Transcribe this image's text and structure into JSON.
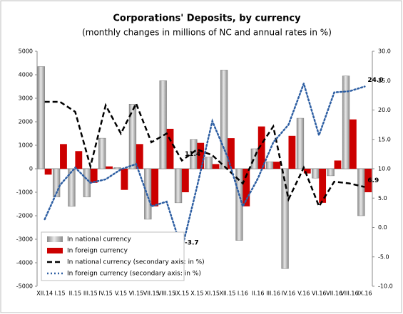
{
  "chart_data": {
    "type": "bar-line",
    "title": "Corporations' Deposits, by currency",
    "subtitle": "(monthly changes in millions of NC and annual rates in %)",
    "categories": [
      "XII.14",
      "I.15",
      "II.15",
      "III.15",
      "IV.15",
      "V.15",
      "VI.15",
      "VII.15",
      "VIII.15",
      "IX.15",
      "X.15",
      "XI.15",
      "XII.15",
      "I.16",
      "II.16",
      "III.16",
      "IV.16",
      "V.16",
      "VI.16",
      "VII.16",
      "VIII.16",
      "IX.16"
    ],
    "series": [
      {
        "name": "In national currency",
        "type": "bar",
        "color": "#a6a6a6",
        "values": [
          4350,
          -1200,
          -1600,
          -1200,
          1300,
          50,
          2750,
          -2150,
          3750,
          -1450,
          1250,
          500,
          4200,
          -3050,
          850,
          300,
          -4250,
          2150,
          -400,
          -300,
          3950,
          -2000
        ]
      },
      {
        "name": "In foreign currency",
        "type": "bar",
        "color": "#cc0000",
        "values": [
          -250,
          1050,
          750,
          -600,
          100,
          -900,
          1050,
          -1600,
          1700,
          -1000,
          1100,
          200,
          1300,
          -1600,
          1800,
          300,
          1400,
          -200,
          -1450,
          350,
          2100,
          -1000
        ]
      },
      {
        "name": "In national currency (secondary axis: in %)",
        "type": "line",
        "axis": "y2",
        "color": "#000000",
        "dash": "dashed",
        "values": [
          21.4,
          21.4,
          19.7,
          10.4,
          20.8,
          16,
          21.1,
          14.5,
          16,
          11.4,
          13.3,
          12.3,
          9.9,
          7.5,
          13.3,
          17.2,
          4.8,
          10.2,
          3.6,
          7.8,
          7.5,
          6.9
        ],
        "value_labels": [
          null,
          null,
          null,
          null,
          null,
          null,
          null,
          null,
          null,
          "11.4",
          null,
          null,
          null,
          null,
          null,
          null,
          null,
          null,
          null,
          null,
          null,
          "6.9"
        ]
      },
      {
        "name": "In foreign currency (secondary axis: in %)",
        "type": "line",
        "axis": "y2",
        "color": "#2e5fa3",
        "dash": "dotted",
        "values": [
          1.4,
          7.2,
          10.2,
          7.6,
          8.2,
          9.9,
          10.8,
          3.6,
          4.4,
          -3.7,
          7,
          18.1,
          12,
          3.6,
          8.4,
          14.5,
          17.5,
          24.5,
          15.7,
          23,
          23.2,
          24
        ],
        "value_labels": [
          null,
          null,
          null,
          null,
          null,
          null,
          null,
          null,
          null,
          "-3.7",
          null,
          null,
          null,
          null,
          null,
          null,
          null,
          null,
          null,
          null,
          null,
          "24.0"
        ]
      }
    ],
    "ylim": [
      -5000,
      5000
    ],
    "yticks": [
      -5000,
      -4000,
      -3000,
      -2000,
      -1000,
      0,
      1000,
      2000,
      3000,
      4000,
      5000
    ],
    "y2lim": [
      -10,
      30
    ],
    "y2ticks": [
      {
        "value": -10,
        "label": "-10.0"
      },
      {
        "value": -5,
        "label": "-5.0"
      },
      {
        "value": 0,
        "label": "0.0"
      },
      {
        "value": 5,
        "label": "5.0"
      },
      {
        "value": 10,
        "label": "10.0"
      },
      {
        "value": 15,
        "label": "15.0"
      },
      {
        "value": 20,
        "label": "20.0"
      },
      {
        "value": 25,
        "label": "25.0"
      },
      {
        "value": 30,
        "label": "30.0"
      }
    ],
    "grid": false,
    "legend": "lower-left"
  }
}
